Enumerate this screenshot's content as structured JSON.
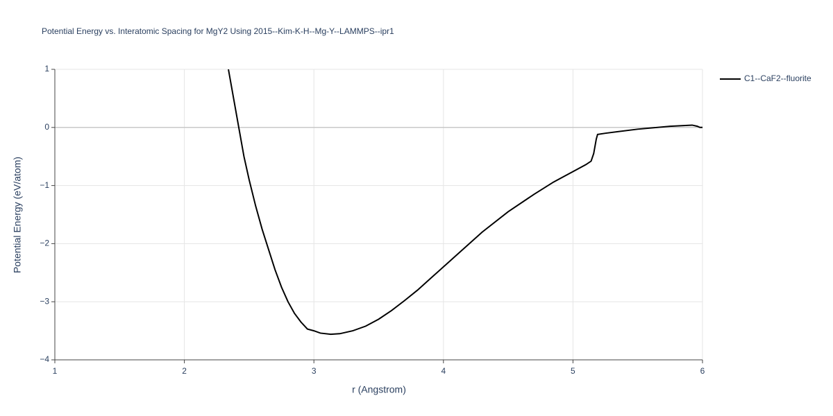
{
  "chart_data": {
    "type": "line",
    "title": "Potential Energy vs. Interatomic Spacing for MgY2 Using 2015--Kim-K-H--Mg-Y--LAMMPS--ipr1",
    "x_label": "r (Angstrom)",
    "y_label": "Potential Energy (eV/atom)",
    "xlim": [
      1,
      6
    ],
    "ylim": [
      -4,
      1
    ],
    "xticks": [
      1,
      2,
      3,
      4,
      5,
      6
    ],
    "yticks": [
      {
        "value": -4,
        "label": "−4"
      },
      {
        "value": -3,
        "label": "−3"
      },
      {
        "value": -2,
        "label": "−2"
      },
      {
        "value": -1,
        "label": "−1"
      },
      0,
      1
    ],
    "grid": true,
    "legend": "right",
    "x": [
      2.34,
      2.38,
      2.42,
      2.46,
      2.5,
      2.55,
      2.6,
      2.65,
      2.7,
      2.75,
      2.8,
      2.85,
      2.9,
      2.95,
      3.0,
      3.05,
      3.13,
      3.2,
      3.3,
      3.4,
      3.5,
      3.6,
      3.7,
      3.8,
      3.9,
      4.0,
      4.1,
      4.2,
      4.3,
      4.5,
      4.7,
      4.85,
      5.0,
      5.1,
      5.14,
      5.16,
      5.18,
      5.19,
      5.25,
      5.5,
      5.75,
      5.92,
      5.96,
      5.98,
      6.0
    ],
    "series": [
      {
        "name": "C1--CaF2--fluorite",
        "color": "#000000",
        "values": [
          1.0,
          0.5,
          0.0,
          -0.5,
          -0.9,
          -1.35,
          -1.75,
          -2.1,
          -2.45,
          -2.75,
          -3.0,
          -3.2,
          -3.35,
          -3.47,
          -3.5,
          -3.54,
          -3.56,
          -3.55,
          -3.5,
          -3.42,
          -3.3,
          -3.15,
          -2.98,
          -2.8,
          -2.6,
          -2.4,
          -2.2,
          -2.0,
          -1.8,
          -1.45,
          -1.15,
          -0.94,
          -0.76,
          -0.64,
          -0.58,
          -0.45,
          -0.2,
          -0.12,
          -0.1,
          -0.03,
          0.02,
          0.04,
          0.02,
          0.0,
          0.0
        ]
      }
    ]
  }
}
